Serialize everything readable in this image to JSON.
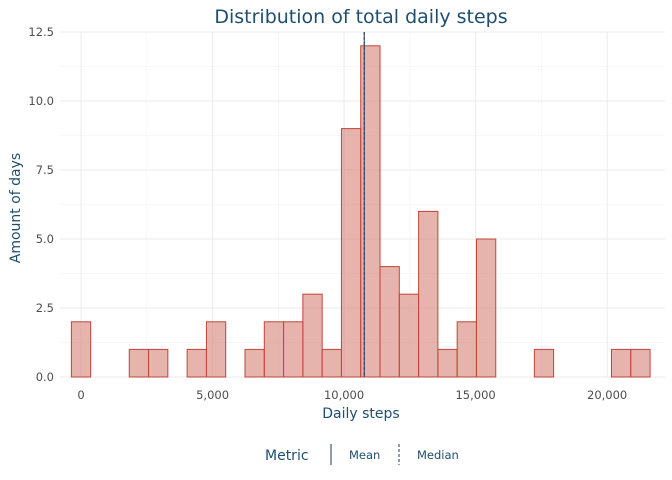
{
  "chart_data": {
    "type": "bar",
    "title": "Distribution of total daily steps",
    "xlabel": "Daily steps",
    "ylabel": "Amount of days",
    "xlim": [
      -800,
      22200
    ],
    "ylim": [
      0,
      12.5
    ],
    "x_ticks": [
      0,
      5000,
      10000,
      15000,
      20000
    ],
    "x_tick_labels": [
      "0",
      "5,000",
      "10,000",
      "15,000",
      "20,000"
    ],
    "y_ticks": [
      0,
      2.5,
      5,
      7.5,
      10,
      12.5
    ],
    "y_tick_labels": [
      "0.0",
      "2.5",
      "5.0",
      "7.5",
      "10.0",
      "12.5"
    ],
    "grid": true,
    "bin_width": 733.3,
    "bins_start": -366.7,
    "values": [
      2,
      0,
      0,
      1,
      1,
      0,
      1,
      2,
      0,
      1,
      2,
      2,
      3,
      1,
      9,
      12,
      4,
      3,
      6,
      1,
      2,
      5,
      0,
      0,
      1,
      0,
      0,
      0,
      1,
      1
    ],
    "bar_color": "#d9847a",
    "bar_edge_color": "#c0453a",
    "mean_line": {
      "name": "Mean",
      "value": 10766,
      "style": "solid",
      "color": "#1f3a5a"
    },
    "median_line": {
      "name": "Median",
      "value": 10765,
      "style": "dashed",
      "color": "#1f3a5a"
    },
    "legend": {
      "title": "Metric",
      "placement": "bottom",
      "items": [
        {
          "label": "Mean",
          "style": "solid"
        },
        {
          "label": "Median",
          "style": "dashed"
        }
      ]
    }
  }
}
